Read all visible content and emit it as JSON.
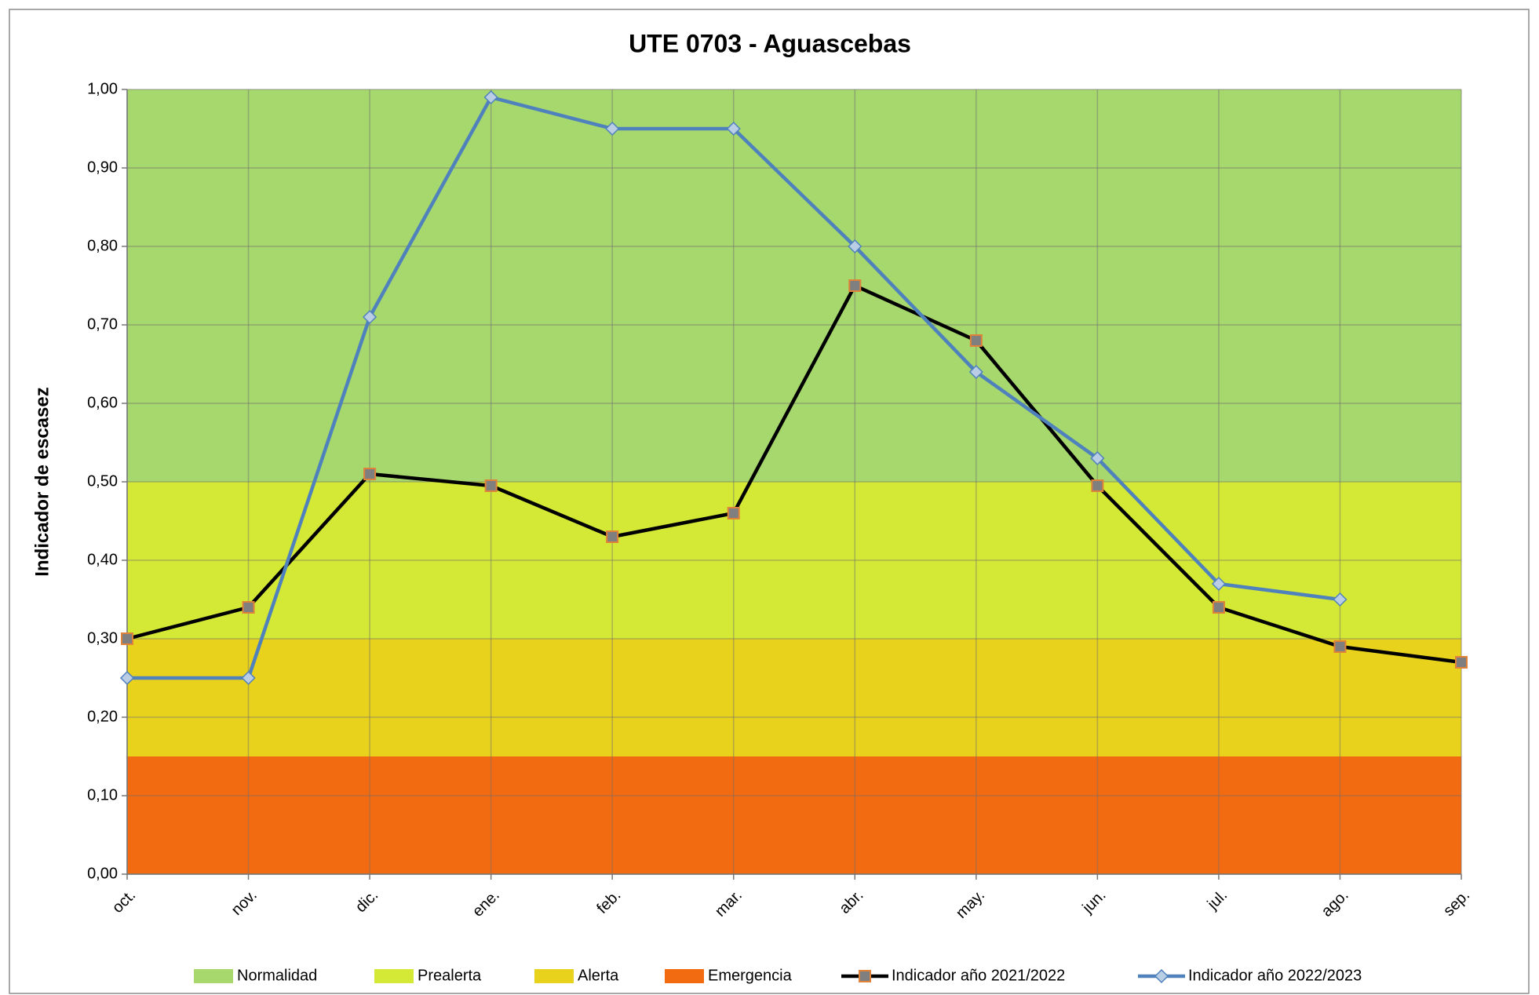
{
  "chart_data": {
    "type": "line",
    "title": "UTE 0703 - Aguascebas",
    "y_label": "Indicador de escasez",
    "categories": [
      "oct.",
      "nov.",
      "dic.",
      "ene.",
      "feb.",
      "mar.",
      "abr.",
      "may.",
      "jun.",
      "jul.",
      "ago.",
      "sep."
    ],
    "bands": [
      {
        "name": "Normalidad",
        "color": "#a6d86e",
        "value": 0.5
      },
      {
        "name": "Prealerta",
        "color": "#d4e935",
        "value": 0.2
      },
      {
        "name": "Alerta",
        "color": "#e8d21c",
        "value": 0.15
      },
      {
        "name": "Emergencia",
        "color": "#f26b10",
        "value": 0.15
      }
    ],
    "series": [
      {
        "name": "Indicador año 2021/2022",
        "color": "#000000",
        "marker": "square",
        "marker_color": "#7f7f7f",
        "marker_edge": "#e0823a",
        "values": [
          0.3,
          0.34,
          0.51,
          0.495,
          0.43,
          0.46,
          0.75,
          0.68,
          0.495,
          0.34,
          0.29,
          0.27
        ]
      },
      {
        "name": "Indicador año 2022/2023",
        "color": "#4f81bd",
        "marker": "diamond",
        "marker_color": "#b9cde5",
        "marker_edge": "#4f81bd",
        "values": [
          0.25,
          0.25,
          0.71,
          0.99,
          0.95,
          0.95,
          0.8,
          0.64,
          0.53,
          0.37,
          0.35,
          null
        ]
      }
    ],
    "ylim": [
      0,
      1
    ],
    "yticks": [
      {
        "value": 0,
        "label": "0,00"
      },
      {
        "value": 0.1,
        "label": "0,10"
      },
      {
        "value": 0.2,
        "label": "0,20"
      },
      {
        "value": 0.3,
        "label": "0,30"
      },
      {
        "value": 0.4,
        "label": "0,40"
      },
      {
        "value": 0.5,
        "label": "0,50"
      },
      {
        "value": 0.6,
        "label": "0,60"
      },
      {
        "value": 0.7,
        "label": "0,70"
      },
      {
        "value": 0.8,
        "label": "0,80"
      },
      {
        "value": 0.9,
        "label": "0,90"
      },
      {
        "value": 1,
        "label": "1,00"
      }
    ],
    "grid": true,
    "legend": "bottom"
  }
}
